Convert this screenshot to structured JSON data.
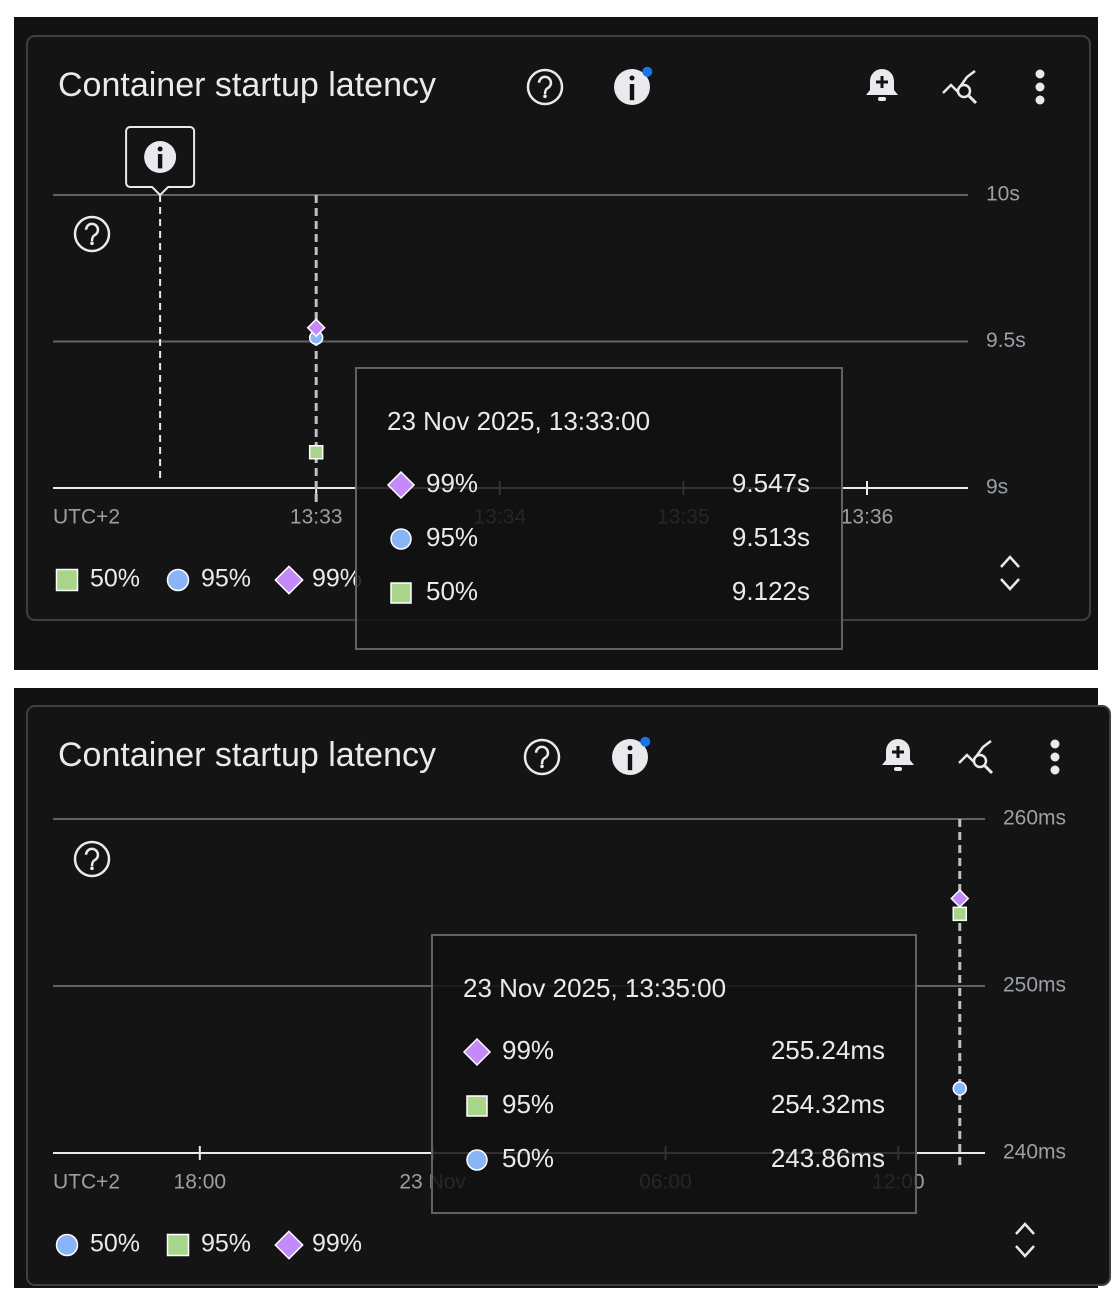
{
  "chart_data": [
    {
      "type": "scatter",
      "title": "Container startup latency",
      "timezone": "UTC+2",
      "tooltip": "23 Nov 2025, 13:33:00",
      "x": [
        "2025-11-23T13:33:00"
      ],
      "series": [
        {
          "name": "50%",
          "color": "#a8d58a",
          "marker": "square",
          "values": [
            9.122
          ],
          "value_labels": [
            "9.122s"
          ]
        },
        {
          "name": "95%",
          "color": "#8ab4f8",
          "marker": "circle",
          "values": [
            9.513
          ],
          "value_labels": [
            "9.513s"
          ]
        },
        {
          "name": "99%",
          "color": "#c58af9",
          "marker": "diamond",
          "values": [
            9.547
          ],
          "value_labels": [
            "9.547s"
          ]
        }
      ],
      "ylim": [
        9,
        10
      ],
      "yticks": [
        {
          "value": 9,
          "label": "9s"
        },
        {
          "value": 9.5,
          "label": "9.5s"
        },
        {
          "value": 10,
          "label": "10s"
        }
      ],
      "xlim": [
        "2025-11-23T13:31:34",
        "2025-11-23T13:36:33"
      ],
      "xticks": [
        {
          "value": "2025-11-23T13:33:00",
          "label": "13:33"
        },
        {
          "value": "2025-11-23T13:34:00",
          "label": "13:34"
        },
        {
          "value": "2025-11-23T13:35:00",
          "label": "13:35"
        },
        {
          "value": "2025-11-23T13:36:00",
          "label": "13:36"
        }
      ],
      "events": [
        "2025-11-23T13:32:09"
      ],
      "grid": true
    },
    {
      "type": "scatter",
      "title": "Container startup latency",
      "timezone": "UTC+2",
      "tooltip": "23 Nov 2025, 13:35:00",
      "x": [
        "2025-11-23T13:35:00"
      ],
      "series": [
        {
          "name": "50%",
          "color": "#8ab4f8",
          "marker": "circle",
          "values": [
            243.86
          ],
          "value_labels": [
            "243.86ms"
          ]
        },
        {
          "name": "95%",
          "color": "#a8d58a",
          "marker": "square",
          "values": [
            254.32
          ],
          "value_labels": [
            "254.32ms"
          ]
        },
        {
          "name": "99%",
          "color": "#c58af9",
          "marker": "diamond",
          "values": [
            255.24
          ],
          "value_labels": [
            "255.24ms"
          ]
        }
      ],
      "ylim": [
        240,
        260
      ],
      "yticks": [
        {
          "value": 240,
          "label": "240ms"
        },
        {
          "value": 250,
          "label": "250ms"
        },
        {
          "value": 260,
          "label": "260ms"
        }
      ],
      "xlim": [
        "2025-11-22T14:13:00",
        "2025-11-23T14:14:00"
      ],
      "xticks": [
        {
          "value": "2025-11-22T18:00:00",
          "label": "18:00"
        },
        {
          "value": "2025-11-23T00:00:00",
          "label": "23 Nov"
        },
        {
          "value": "2025-11-23T06:00:00",
          "label": "06:00"
        },
        {
          "value": "2025-11-23T12:00:00",
          "label": "12:00"
        }
      ],
      "events": [],
      "grid": true
    }
  ]
}
